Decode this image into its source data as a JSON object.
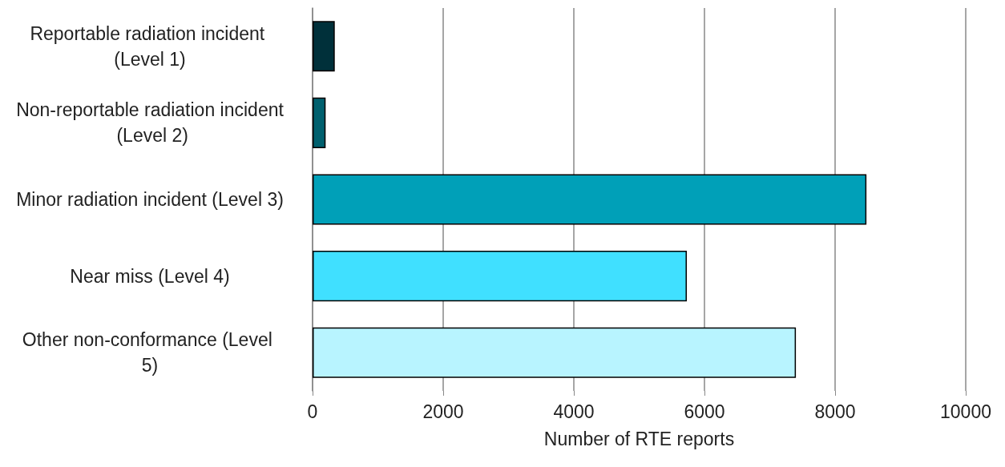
{
  "chart_data": {
    "type": "bar",
    "orientation": "horizontal",
    "categories": [
      "Reportable radiation incident (Level 1)",
      "Non-reportable radiation incident (Level 2)",
      "Minor radiation incident (Level 3)",
      "Near miss (Level 4)",
      "Other non-conformance (Level 5)"
    ],
    "values": [
      340,
      200,
      8480,
      5730,
      7400
    ],
    "colors": [
      "#00303a",
      "#00606e",
      "#00a0b8",
      "#40e0ff",
      "#b8f4ff"
    ],
    "xlabel": "Number of RTE reports",
    "xlim": [
      0,
      10000
    ],
    "xticks": [
      0,
      2000,
      4000,
      6000,
      8000,
      10000
    ],
    "grid": "x"
  }
}
